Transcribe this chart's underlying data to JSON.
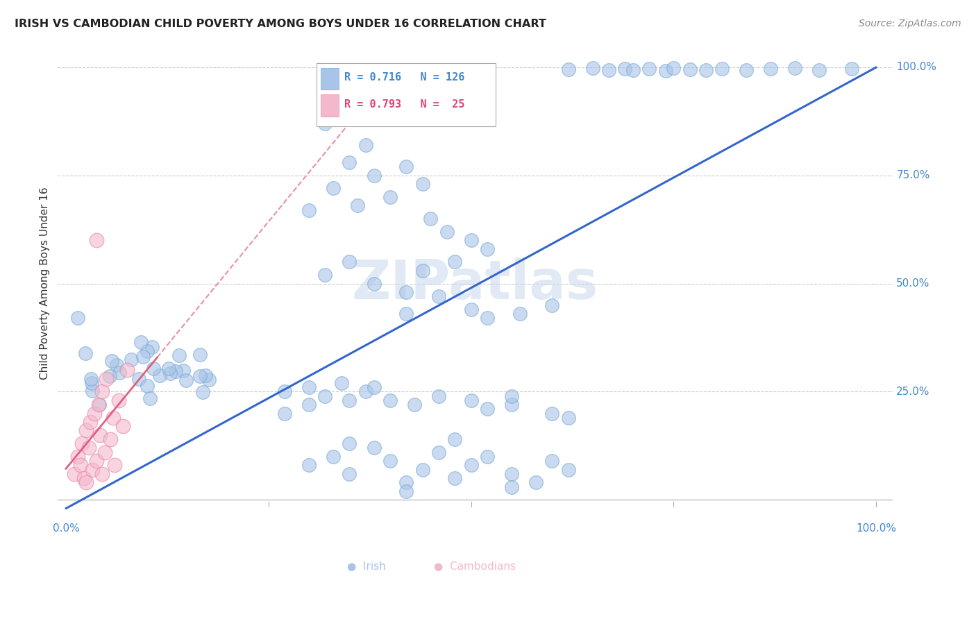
{
  "title": "IRISH VS CAMBODIAN CHILD POVERTY AMONG BOYS UNDER 16 CORRELATION CHART",
  "source": "Source: ZipAtlas.com",
  "ylabel": "Child Poverty Among Boys Under 16",
  "watermark": "ZIPatlas",
  "irish_color": "#a8c4e8",
  "irish_edge_color": "#7aaad4",
  "cambodian_color": "#f4b8cc",
  "cambodian_edge_color": "#e888a8",
  "irish_line_color": "#3366cc",
  "cambodian_line_color": "#e06080",
  "background_color": "#ffffff",
  "grid_color": "#cccccc",
  "title_color": "#222222",
  "axis_label_color": "#4488cc",
  "r_irish": 0.716,
  "n_irish": 126,
  "r_cambodian": 0.793,
  "n_cambodian": 25
}
